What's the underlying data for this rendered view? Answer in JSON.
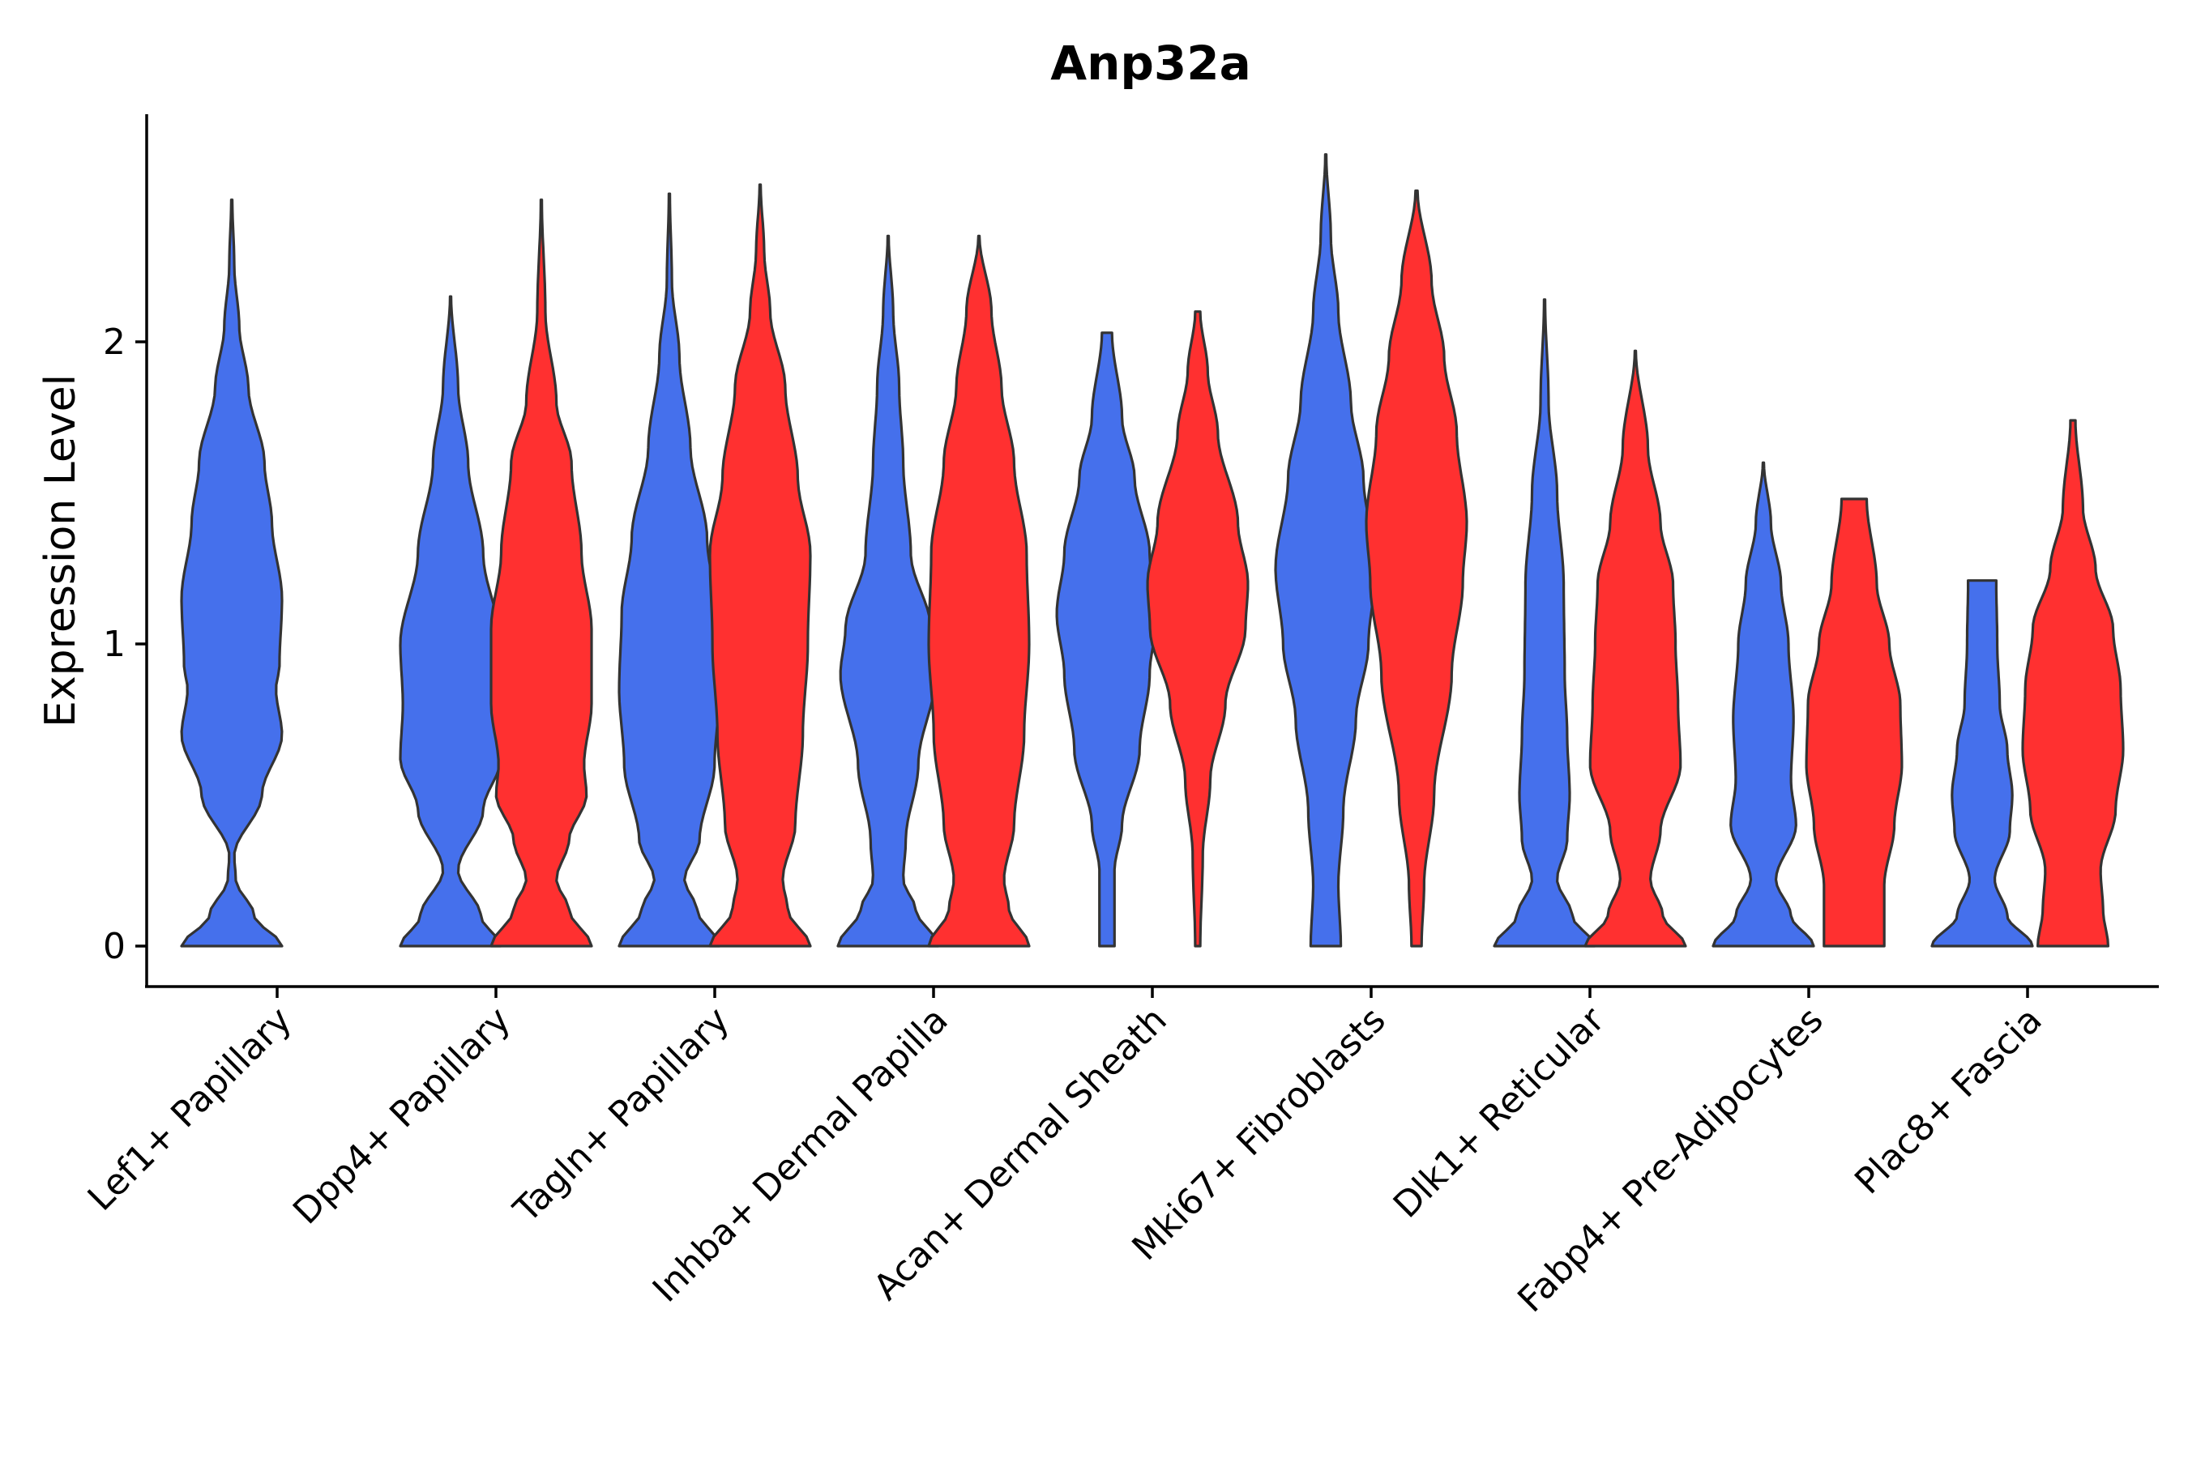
{
  "chart_data": {
    "type": "violin",
    "title": "Anp32a",
    "xlabel": "",
    "ylabel": "Expression Level",
    "ylim": [
      -0.13,
      2.75
    ],
    "yticks": [
      0,
      1,
      2
    ],
    "grid": false,
    "legend": "none",
    "colors": {
      "group1": "#4570EC",
      "group2": "#FF3030",
      "outline": "#333333"
    },
    "categories": [
      "Lef1+ Papillary",
      "Dpp4+ Papillary",
      "Tagln+ Papillary",
      "Inhba+ Dermal Papilla",
      "Acan+ Dermal Sheath",
      "Mki67+ Fibroblasts",
      "Dlk1+ Reticular",
      "Fabp4+ Pre-Adipocytes",
      "Plac8+ Fascia"
    ],
    "violins": [
      {
        "category": "Lef1+ Papillary",
        "group": "group1",
        "max": 2.47,
        "profile": [
          [
            0,
            1.0
          ],
          [
            0.1,
            0.45
          ],
          [
            0.22,
            0.08
          ],
          [
            0.3,
            0.05
          ],
          [
            0.5,
            0.6
          ],
          [
            0.7,
            1.0
          ],
          [
            0.85,
            0.88
          ],
          [
            0.93,
            0.95
          ],
          [
            1.15,
            1.0
          ],
          [
            1.4,
            0.8
          ],
          [
            1.6,
            0.65
          ],
          [
            1.85,
            0.33
          ],
          [
            2.05,
            0.15
          ],
          [
            2.25,
            0.05
          ],
          [
            2.47,
            0.01
          ]
        ]
      },
      {
        "category": "Dpp4+ Papillary",
        "group": "group1",
        "max": 2.15,
        "profile": [
          [
            0,
            1.0
          ],
          [
            0.1,
            0.6
          ],
          [
            0.25,
            0.15
          ],
          [
            0.45,
            0.65
          ],
          [
            0.62,
            1.0
          ],
          [
            0.8,
            0.95
          ],
          [
            1.0,
            1.0
          ],
          [
            1.3,
            0.65
          ],
          [
            1.6,
            0.35
          ],
          [
            1.85,
            0.15
          ],
          [
            2.15,
            0.01
          ]
        ]
      },
      {
        "category": "Dpp4+ Papillary",
        "group": "group2",
        "max": 2.47,
        "profile": [
          [
            0,
            1.0
          ],
          [
            0.12,
            0.55
          ],
          [
            0.22,
            0.3
          ],
          [
            0.35,
            0.55
          ],
          [
            0.5,
            0.9
          ],
          [
            0.6,
            0.85
          ],
          [
            0.8,
            1.0
          ],
          [
            1.05,
            1.0
          ],
          [
            1.3,
            0.8
          ],
          [
            1.6,
            0.6
          ],
          [
            1.8,
            0.3
          ],
          [
            2.1,
            0.08
          ],
          [
            2.47,
            0.01
          ]
        ]
      },
      {
        "category": "Tagln+ Papillary",
        "group": "group1",
        "max": 2.49,
        "profile": [
          [
            0,
            1.0
          ],
          [
            0.12,
            0.55
          ],
          [
            0.22,
            0.3
          ],
          [
            0.35,
            0.6
          ],
          [
            0.6,
            0.9
          ],
          [
            0.85,
            1.0
          ],
          [
            1.1,
            0.95
          ],
          [
            1.35,
            0.75
          ],
          [
            1.65,
            0.42
          ],
          [
            1.95,
            0.2
          ],
          [
            2.2,
            0.05
          ],
          [
            2.49,
            0.01
          ]
        ]
      },
      {
        "category": "Tagln+ Papillary",
        "group": "group2",
        "max": 2.52,
        "profile": [
          [
            0,
            1.0
          ],
          [
            0.12,
            0.55
          ],
          [
            0.22,
            0.45
          ],
          [
            0.4,
            0.7
          ],
          [
            0.7,
            0.85
          ],
          [
            1.0,
            0.95
          ],
          [
            1.3,
            1.0
          ],
          [
            1.55,
            0.75
          ],
          [
            1.85,
            0.5
          ],
          [
            2.1,
            0.2
          ],
          [
            2.3,
            0.08
          ],
          [
            2.52,
            0.01
          ]
        ]
      },
      {
        "category": "Inhba+ Dermal Papilla",
        "group": "group1",
        "max": 2.35,
        "profile": [
          [
            0,
            1.0
          ],
          [
            0.12,
            0.55
          ],
          [
            0.22,
            0.3
          ],
          [
            0.35,
            0.35
          ],
          [
            0.6,
            0.6
          ],
          [
            0.9,
            0.95
          ],
          [
            1.05,
            0.85
          ],
          [
            1.3,
            0.45
          ],
          [
            1.6,
            0.3
          ],
          [
            1.85,
            0.22
          ],
          [
            2.1,
            0.1
          ],
          [
            2.35,
            0.01
          ]
        ]
      },
      {
        "category": "Inhba+ Dermal Papilla",
        "group": "group2",
        "max": 2.35,
        "profile": [
          [
            0,
            1.0
          ],
          [
            0.12,
            0.6
          ],
          [
            0.22,
            0.5
          ],
          [
            0.4,
            0.7
          ],
          [
            0.7,
            0.9
          ],
          [
            1.0,
            1.0
          ],
          [
            1.3,
            0.95
          ],
          [
            1.6,
            0.7
          ],
          [
            1.85,
            0.45
          ],
          [
            2.1,
            0.25
          ],
          [
            2.35,
            0.01
          ]
        ]
      },
      {
        "category": "Acan+ Dermal Sheath",
        "group": "group1",
        "max": 2.03,
        "profile": [
          [
            0,
            0.15
          ],
          [
            0.25,
            0.15
          ],
          [
            0.4,
            0.3
          ],
          [
            0.65,
            0.65
          ],
          [
            0.9,
            0.85
          ],
          [
            1.1,
            1.0
          ],
          [
            1.3,
            0.85
          ],
          [
            1.55,
            0.55
          ],
          [
            1.75,
            0.3
          ],
          [
            2.03,
            0.1
          ]
        ]
      },
      {
        "category": "Acan+ Dermal Sheath",
        "group": "group2",
        "max": 2.1,
        "profile": [
          [
            0,
            0.05
          ],
          [
            0.3,
            0.1
          ],
          [
            0.55,
            0.25
          ],
          [
            0.8,
            0.55
          ],
          [
            1.05,
            0.95
          ],
          [
            1.2,
            1.0
          ],
          [
            1.4,
            0.8
          ],
          [
            1.7,
            0.4
          ],
          [
            1.9,
            0.2
          ],
          [
            2.1,
            0.05
          ]
        ]
      },
      {
        "category": "Mki67+ Fibroblasts",
        "group": "group1",
        "max": 2.62,
        "profile": [
          [
            0,
            0.3
          ],
          [
            0.2,
            0.25
          ],
          [
            0.45,
            0.35
          ],
          [
            0.75,
            0.6
          ],
          [
            1.0,
            0.85
          ],
          [
            1.25,
            1.0
          ],
          [
            1.55,
            0.75
          ],
          [
            1.8,
            0.5
          ],
          [
            2.1,
            0.25
          ],
          [
            2.35,
            0.1
          ],
          [
            2.62,
            0.01
          ]
        ]
      },
      {
        "category": "Mki67+ Fibroblasts",
        "group": "group2",
        "max": 2.5,
        "profile": [
          [
            0,
            0.1
          ],
          [
            0.2,
            0.15
          ],
          [
            0.5,
            0.35
          ],
          [
            0.9,
            0.7
          ],
          [
            1.2,
            0.92
          ],
          [
            1.4,
            1.0
          ],
          [
            1.7,
            0.8
          ],
          [
            1.95,
            0.55
          ],
          [
            2.2,
            0.3
          ],
          [
            2.5,
            0.02
          ]
        ]
      },
      {
        "category": "Dlk1+ Reticular",
        "group": "group1",
        "max": 2.14,
        "profile": [
          [
            0,
            1.0
          ],
          [
            0.1,
            0.55
          ],
          [
            0.22,
            0.25
          ],
          [
            0.35,
            0.45
          ],
          [
            0.5,
            0.5
          ],
          [
            0.7,
            0.45
          ],
          [
            0.9,
            0.4
          ],
          [
            1.2,
            0.38
          ],
          [
            1.5,
            0.25
          ],
          [
            1.8,
            0.08
          ],
          [
            2.14,
            0.01
          ]
        ]
      },
      {
        "category": "Dlk1+ Reticular",
        "group": "group2",
        "max": 1.97,
        "profile": [
          [
            0,
            1.0
          ],
          [
            0.1,
            0.55
          ],
          [
            0.22,
            0.3
          ],
          [
            0.38,
            0.5
          ],
          [
            0.6,
            0.9
          ],
          [
            0.8,
            0.85
          ],
          [
            1.0,
            0.8
          ],
          [
            1.2,
            0.75
          ],
          [
            1.4,
            0.5
          ],
          [
            1.65,
            0.25
          ],
          [
            1.97,
            0.01
          ]
        ]
      },
      {
        "category": "Fabp4+ Pre-Adipocytes",
        "group": "group1",
        "max": 1.6,
        "profile": [
          [
            0,
            1.0
          ],
          [
            0.1,
            0.55
          ],
          [
            0.22,
            0.25
          ],
          [
            0.4,
            0.65
          ],
          [
            0.55,
            0.55
          ],
          [
            0.75,
            0.6
          ],
          [
            1.0,
            0.5
          ],
          [
            1.2,
            0.35
          ],
          [
            1.4,
            0.15
          ],
          [
            1.6,
            0.01
          ]
        ]
      },
      {
        "category": "Fabp4+ Pre-Adipocytes",
        "group": "group2",
        "max": 1.48,
        "profile": [
          [
            0,
            0.6
          ],
          [
            0.2,
            0.6
          ],
          [
            0.4,
            0.8
          ],
          [
            0.6,
            0.95
          ],
          [
            0.8,
            0.92
          ],
          [
            1.0,
            0.7
          ],
          [
            1.2,
            0.45
          ],
          [
            1.48,
            0.25
          ]
        ]
      },
      {
        "category": "Plac8+ Fascia",
        "group": "group1",
        "max": 1.21,
        "profile": [
          [
            0,
            1.0
          ],
          [
            0.1,
            0.5
          ],
          [
            0.22,
            0.25
          ],
          [
            0.38,
            0.55
          ],
          [
            0.5,
            0.6
          ],
          [
            0.65,
            0.5
          ],
          [
            0.8,
            0.35
          ],
          [
            1.0,
            0.3
          ],
          [
            1.21,
            0.28
          ]
        ]
      },
      {
        "category": "Plac8+ Fascia",
        "group": "group2",
        "max": 1.74,
        "profile": [
          [
            0,
            0.7
          ],
          [
            0.12,
            0.6
          ],
          [
            0.25,
            0.55
          ],
          [
            0.45,
            0.85
          ],
          [
            0.65,
            1.0
          ],
          [
            0.85,
            0.95
          ],
          [
            1.05,
            0.8
          ],
          [
            1.25,
            0.45
          ],
          [
            1.45,
            0.2
          ],
          [
            1.74,
            0.05
          ]
        ]
      }
    ]
  }
}
